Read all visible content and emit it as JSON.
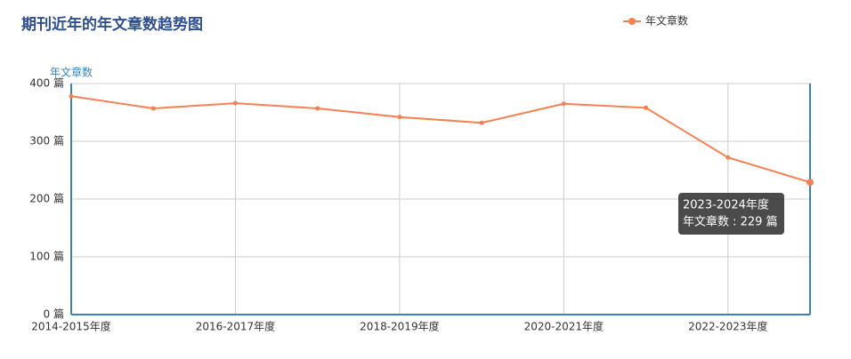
{
  "chart_data": {
    "type": "line",
    "title": "期刊近年的年文章数趋势图",
    "y_label": "年文章数",
    "categories": [
      "2014-2015年度",
      null,
      "2016-2017年度",
      null,
      "2018-2019年度",
      null,
      "2020-2021年度",
      null,
      "2022-2023年度",
      "2023-2024年度"
    ],
    "series": [
      {
        "name": "年文章数",
        "color": "#f58053",
        "values": [
          378,
          357,
          366,
          357,
          342,
          332,
          365,
          358,
          272,
          229
        ]
      }
    ],
    "ylim": [
      0,
      400
    ],
    "yticks": [
      {
        "value": 0,
        "label": "0 篇"
      },
      {
        "value": 100,
        "label": "100 篇"
      },
      {
        "value": 200,
        "label": "200 篇"
      },
      {
        "value": 300,
        "label": "300 篇"
      },
      {
        "value": 400,
        "label": "400 篇"
      }
    ],
    "grid": true,
    "tooltip_label": "年文章数 : 229 篇"
  }
}
